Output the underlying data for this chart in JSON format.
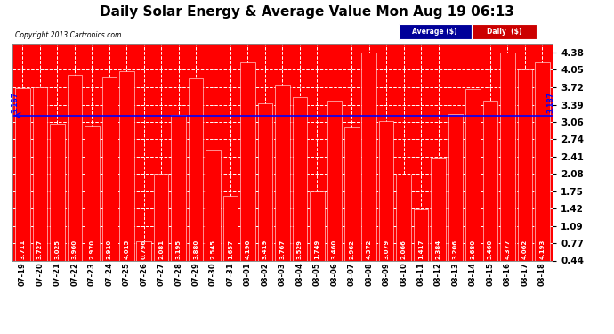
{
  "title": "Daily Solar Energy & Average Value Mon Aug 19 06:13",
  "copyright": "Copyright 2013 Cartronics.com",
  "categories": [
    "07-19",
    "07-20",
    "07-21",
    "07-22",
    "07-23",
    "07-24",
    "07-25",
    "07-26",
    "07-27",
    "07-28",
    "07-29",
    "07-30",
    "07-31",
    "08-01",
    "08-02",
    "08-03",
    "08-04",
    "08-05",
    "08-06",
    "08-07",
    "08-08",
    "08-09",
    "08-10",
    "08-11",
    "08-12",
    "08-13",
    "08-14",
    "08-15",
    "08-16",
    "08-17",
    "08-18"
  ],
  "values": [
    3.711,
    3.727,
    3.025,
    3.96,
    2.97,
    3.91,
    4.015,
    0.796,
    2.081,
    3.195,
    3.88,
    2.545,
    1.657,
    4.19,
    3.419,
    3.767,
    3.529,
    1.749,
    3.46,
    2.962,
    4.372,
    3.079,
    2.066,
    1.417,
    2.384,
    3.206,
    3.68,
    3.46,
    4.377,
    4.062,
    4.193
  ],
  "average": 3.187,
  "bar_color": "#FF0000",
  "plot_bg_color": "#FF0000",
  "avg_line_color": "#0000FF",
  "background_color": "#FFFFFF",
  "grid_color": "#FFFFFF",
  "yticks": [
    0.44,
    0.77,
    1.09,
    1.42,
    1.75,
    2.08,
    2.41,
    2.74,
    3.06,
    3.39,
    3.72,
    4.05,
    4.38
  ],
  "ymin": 0.44,
  "ymax": 4.55,
  "legend_avg_bg": "#000099",
  "legend_daily_bg": "#CC0000",
  "title_fontsize": 11,
  "avg_label": "3.187",
  "value_fontsize": 5.0,
  "bar_bottom": 0.44
}
